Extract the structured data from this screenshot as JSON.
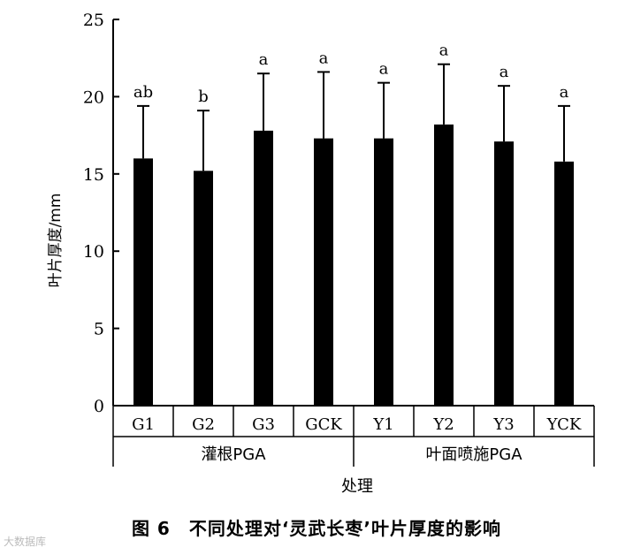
{
  "chart_data": {
    "type": "bar",
    "categories": [
      "G1",
      "G2",
      "G3",
      "GCK",
      "Y1",
      "Y2",
      "Y3",
      "YCK"
    ],
    "values": [
      16.0,
      15.2,
      17.8,
      17.3,
      17.3,
      18.2,
      17.1,
      15.8
    ],
    "error_upper": [
      19.4,
      19.1,
      21.5,
      21.6,
      20.9,
      22.1,
      20.7,
      19.4
    ],
    "significance_labels": [
      "ab",
      "b",
      "a",
      "a",
      "a",
      "a",
      "a",
      "a"
    ],
    "groups": [
      {
        "label": "灌根PGA",
        "categories": [
          "G1",
          "G2",
          "G3",
          "GCK"
        ]
      },
      {
        "label": "叶面喷施PGA",
        "categories": [
          "Y1",
          "Y2",
          "Y3",
          "YCK"
        ]
      }
    ],
    "ylabel": "叶片厚度/mm",
    "xlabel": "处理",
    "ylim": [
      0,
      25
    ],
    "yticks": [
      0,
      5,
      10,
      15,
      20,
      25
    ],
    "bar_color": "#000000",
    "grid": false
  },
  "caption": "图 6　不同处理对‘灵武长枣’叶片厚度的影响",
  "watermark": "大数据库"
}
